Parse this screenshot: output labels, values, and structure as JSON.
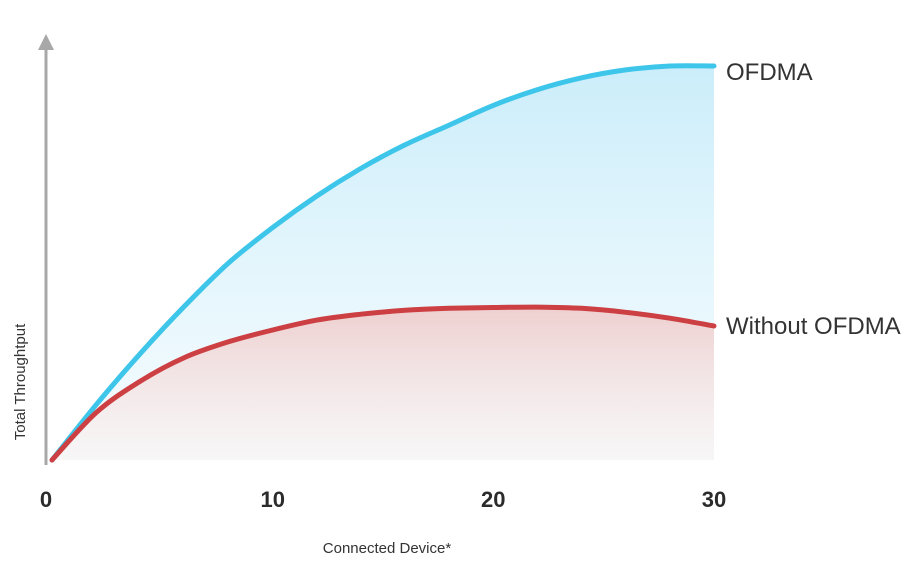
{
  "chart_data": {
    "type": "area",
    "xlabel": "Connected Device*",
    "ylabel": "Total Throughtput",
    "xticks": [
      "0",
      "10",
      "20",
      "30"
    ],
    "xlim": [
      0,
      30
    ],
    "ylim": [
      0,
      100
    ],
    "y_tick_labels_shown": false,
    "grid": false,
    "legend": "direct labels at line ends (right)",
    "x": [
      0,
      2,
      4,
      6,
      8,
      10,
      12,
      14,
      16,
      18,
      20,
      22,
      24,
      26,
      28,
      30
    ],
    "series": [
      {
        "name": "OFDMA",
        "color": "#3ec6ea",
        "fill_color": "#cfeef9",
        "values": [
          0,
          14,
          27,
          39,
          50,
          59,
          67,
          74,
          80,
          85,
          90,
          94,
          97,
          99,
          100,
          100
        ]
      },
      {
        "name": "Without OFDMA",
        "color": "#cc3f43",
        "fill_color": "#f1d3d3",
        "values": [
          0,
          12,
          20,
          26,
          30,
          33,
          35.5,
          37,
          38,
          38.5,
          38.7,
          38.8,
          38.5,
          37.5,
          36,
          34
        ]
      }
    ]
  }
}
